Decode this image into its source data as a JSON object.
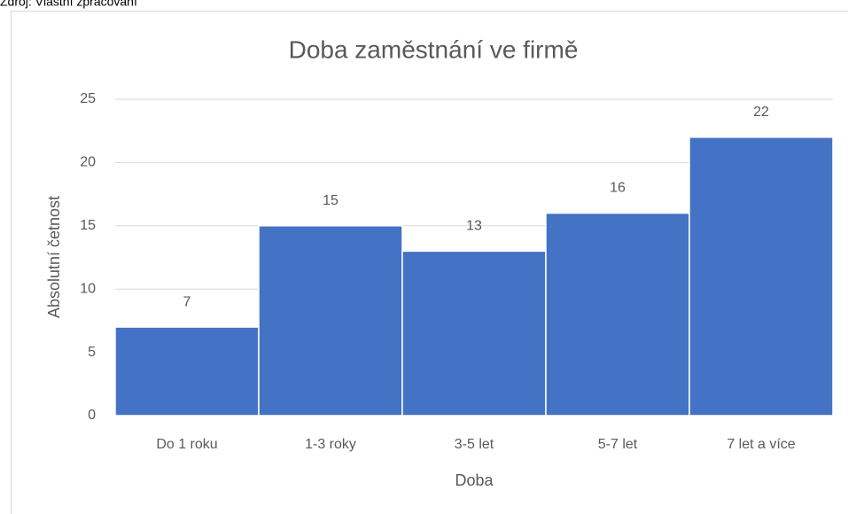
{
  "source": "Zdroj: Vlastní zpracování",
  "chart_data": {
    "type": "bar",
    "title": "Doba zaměstnání ve firmě",
    "x_label": "Doba",
    "y_label": "Absolutní četnost",
    "categories": [
      "Do 1 roku",
      "1-3 roky",
      "3-5 let",
      "5-7 let",
      "7 let a více"
    ],
    "values": [
      7,
      15,
      13,
      16,
      22
    ],
    "color": "#4472c4",
    "ylim": [
      0,
      25
    ],
    "yticks": [
      0,
      5,
      10,
      15,
      20,
      25
    ],
    "grid": true
  }
}
